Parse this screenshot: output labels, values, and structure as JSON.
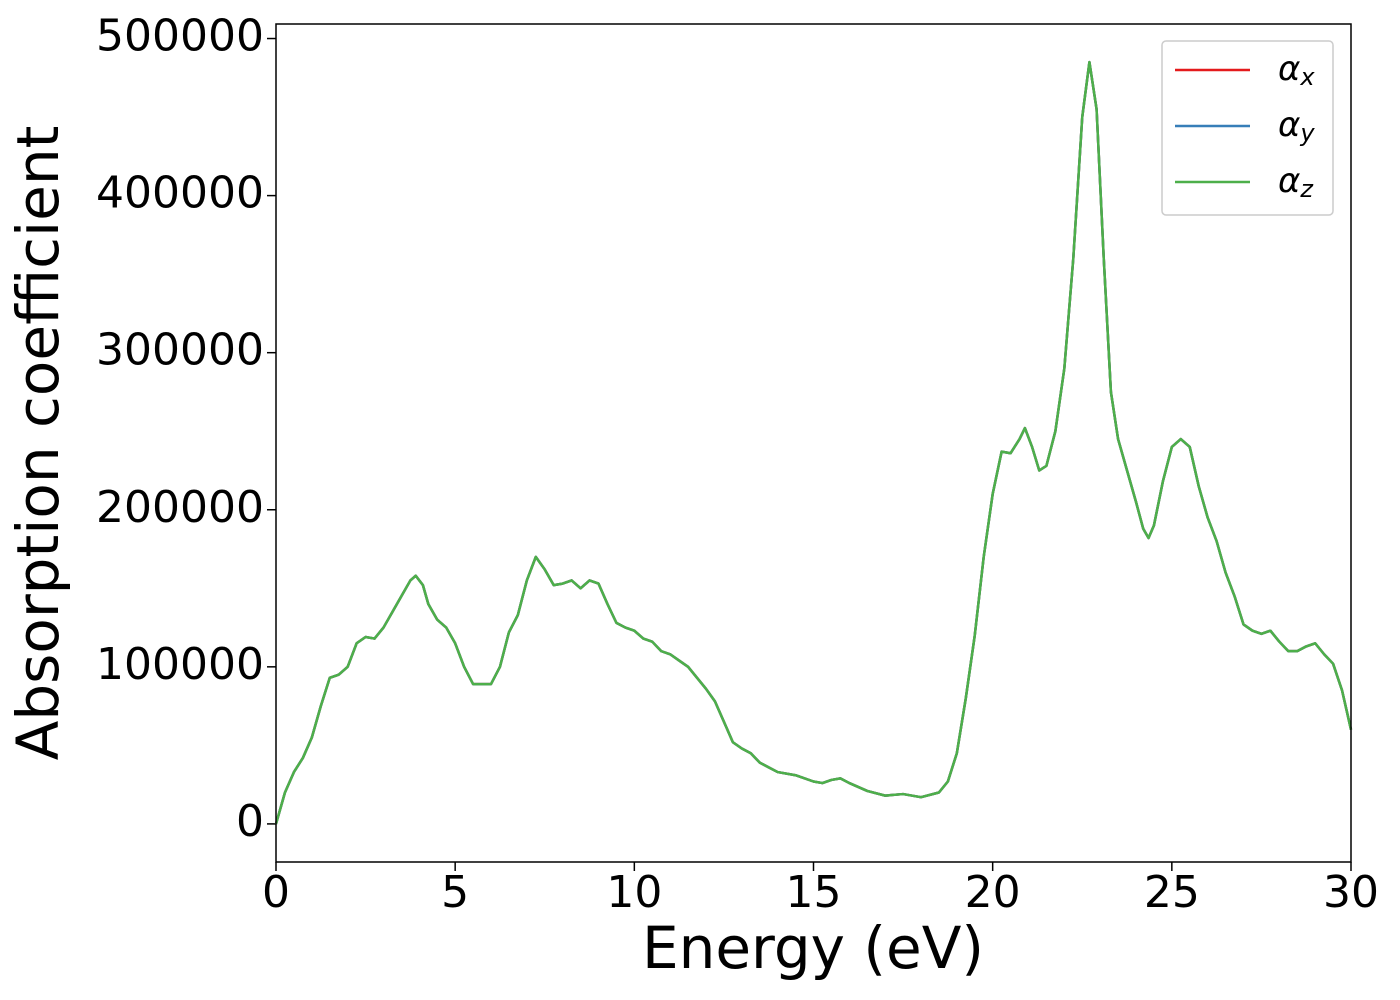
{
  "chart_data": {
    "type": "line",
    "xlabel": "Energy (eV)",
    "ylabel": "Absorption coefficient",
    "x": [
      0,
      0.25,
      0.5,
      0.75,
      1,
      1.25,
      1.5,
      1.75,
      2,
      2.25,
      2.5,
      2.75,
      3,
      3.25,
      3.5,
      3.75,
      3.9,
      4.1,
      4.25,
      4.5,
      4.75,
      5,
      5.25,
      5.5,
      5.75,
      6,
      6.25,
      6.5,
      6.75,
      7,
      7.25,
      7.5,
      7.75,
      8,
      8.25,
      8.5,
      8.75,
      9,
      9.25,
      9.5,
      9.75,
      10,
      10.25,
      10.5,
      10.75,
      11,
      11.25,
      11.5,
      11.75,
      12,
      12.25,
      12.5,
      12.75,
      13,
      13.25,
      13.5,
      13.75,
      14,
      14.5,
      15,
      15.25,
      15.5,
      15.75,
      16,
      16.5,
      17,
      17.5,
      18,
      18.5,
      18.75,
      19,
      19.25,
      19.5,
      19.75,
      20,
      20.25,
      20.5,
      20.75,
      20.9,
      21.1,
      21.3,
      21.5,
      21.75,
      22,
      22.25,
      22.5,
      22.7,
      22.9,
      23.1,
      23.3,
      23.5,
      23.75,
      24,
      24.2,
      24.35,
      24.5,
      24.75,
      25,
      25.25,
      25.5,
      25.75,
      26,
      26.25,
      26.5,
      26.75,
      27,
      27.25,
      27.5,
      27.75,
      28,
      28.25,
      28.5,
      28.75,
      29,
      29.25,
      29.5,
      29.75,
      30
    ],
    "series": [
      {
        "name": "αx",
        "color": "#e41a1c",
        "values": [
          0,
          20000,
          33000,
          42000,
          55000,
          75000,
          93000,
          95000,
          100000,
          115000,
          119000,
          118000,
          125000,
          135000,
          145000,
          155000,
          158000,
          152000,
          140000,
          130000,
          125000,
          115000,
          100000,
          89000,
          89000,
          89000,
          100000,
          122000,
          133000,
          155000,
          170000,
          162000,
          152000,
          153000,
          155000,
          150000,
          155000,
          153000,
          140000,
          128000,
          125000,
          123000,
          118000,
          116000,
          110000,
          108000,
          104000,
          100000,
          93000,
          86000,
          78000,
          65000,
          52000,
          48000,
          45000,
          39000,
          36000,
          33000,
          31000,
          27000,
          26000,
          28000,
          29000,
          26000,
          21000,
          18000,
          19000,
          17000,
          20000,
          27000,
          45000,
          80000,
          120000,
          170000,
          210000,
          237000,
          236000,
          245000,
          252000,
          240000,
          225000,
          228000,
          250000,
          290000,
          360000,
          450000,
          485000,
          455000,
          360000,
          275000,
          245000,
          225000,
          205000,
          188000,
          182000,
          190000,
          218000,
          240000,
          245000,
          240000,
          215000,
          195000,
          180000,
          160000,
          145000,
          127000,
          123000,
          121000,
          123000,
          116000,
          110000,
          110000,
          113000,
          115000,
          108000,
          102000,
          85000,
          60000
        ]
      },
      {
        "name": "αy",
        "color": "#377eb8",
        "values": [
          0,
          20000,
          33000,
          42000,
          55000,
          75000,
          93000,
          95000,
          100000,
          115000,
          119000,
          118000,
          125000,
          135000,
          145000,
          155000,
          158000,
          152000,
          140000,
          130000,
          125000,
          115000,
          100000,
          89000,
          89000,
          89000,
          100000,
          122000,
          133000,
          155000,
          170000,
          162000,
          152000,
          153000,
          155000,
          150000,
          155000,
          153000,
          140000,
          128000,
          125000,
          123000,
          118000,
          116000,
          110000,
          108000,
          104000,
          100000,
          93000,
          86000,
          78000,
          65000,
          52000,
          48000,
          45000,
          39000,
          36000,
          33000,
          31000,
          27000,
          26000,
          28000,
          29000,
          26000,
          21000,
          18000,
          19000,
          17000,
          20000,
          27000,
          45000,
          80000,
          120000,
          170000,
          210000,
          237000,
          236000,
          245000,
          252000,
          240000,
          225000,
          228000,
          250000,
          290000,
          360000,
          450000,
          485000,
          455000,
          360000,
          275000,
          245000,
          225000,
          205000,
          188000,
          182000,
          190000,
          218000,
          240000,
          245000,
          240000,
          215000,
          195000,
          180000,
          160000,
          145000,
          127000,
          123000,
          121000,
          123000,
          116000,
          110000,
          110000,
          113000,
          115000,
          108000,
          102000,
          85000,
          60000
        ]
      },
      {
        "name": "αz",
        "color": "#4daf4a",
        "values": [
          0,
          20000,
          33000,
          42000,
          55000,
          75000,
          93000,
          95000,
          100000,
          115000,
          119000,
          118000,
          125000,
          135000,
          145000,
          155000,
          158000,
          152000,
          140000,
          130000,
          125000,
          115000,
          100000,
          89000,
          89000,
          89000,
          100000,
          122000,
          133000,
          155000,
          170000,
          162000,
          152000,
          153000,
          155000,
          150000,
          155000,
          153000,
          140000,
          128000,
          125000,
          123000,
          118000,
          116000,
          110000,
          108000,
          104000,
          100000,
          93000,
          86000,
          78000,
          65000,
          52000,
          48000,
          45000,
          39000,
          36000,
          33000,
          31000,
          27000,
          26000,
          28000,
          29000,
          26000,
          21000,
          18000,
          19000,
          17000,
          20000,
          27000,
          45000,
          80000,
          120000,
          170000,
          210000,
          237000,
          236000,
          245000,
          252000,
          240000,
          225000,
          228000,
          250000,
          290000,
          360000,
          450000,
          485000,
          455000,
          360000,
          275000,
          245000,
          225000,
          205000,
          188000,
          182000,
          190000,
          218000,
          240000,
          245000,
          240000,
          215000,
          195000,
          180000,
          160000,
          145000,
          127000,
          123000,
          121000,
          123000,
          116000,
          110000,
          110000,
          113000,
          115000,
          108000,
          102000,
          85000,
          60000
        ]
      }
    ],
    "xlim": [
      0,
      30
    ],
    "xticks": [
      0,
      5,
      10,
      15,
      20,
      25,
      30
    ],
    "ylim": [
      -24250,
      509250
    ],
    "yticks": [
      0,
      100000,
      200000,
      300000,
      400000,
      500000
    ],
    "grid": false,
    "legend": "upper right"
  }
}
